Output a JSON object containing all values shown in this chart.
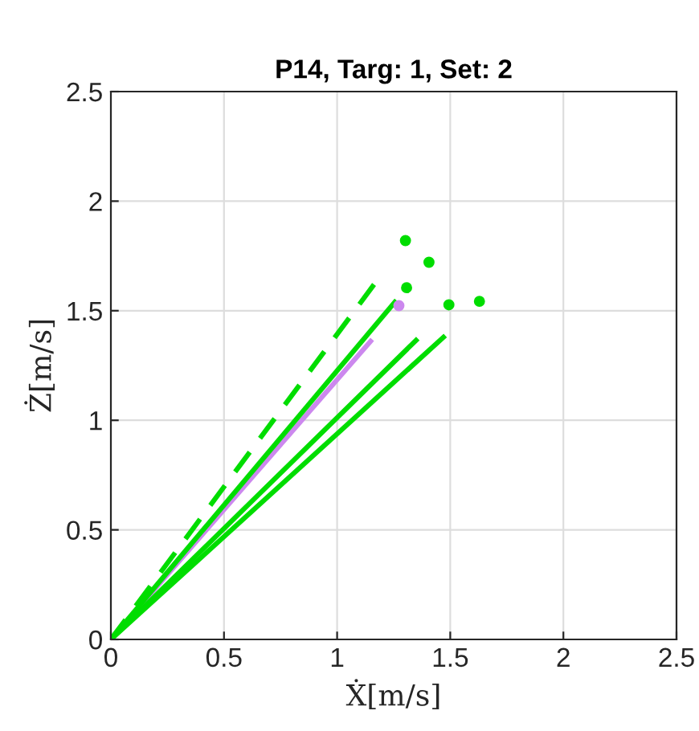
{
  "chart_data": {
    "type": "line",
    "title": "P14, Targ: 1, Set: 2",
    "xlabel": "Ẋ[m/s]",
    "ylabel": "Ż[m/s]",
    "xlim": [
      0,
      2.5
    ],
    "ylim": [
      0,
      2.5
    ],
    "xticks": [
      0,
      0.5,
      1,
      1.5,
      2,
      2.5
    ],
    "yticks": [
      0,
      0.5,
      1,
      1.5,
      2,
      2.5
    ],
    "grid": true,
    "series": [
      {
        "color": "#cc88ee",
        "x": [
          0,
          1.148
        ],
        "values": [
          0,
          1.361
        ],
        "line_style": "solid",
        "marker": "none"
      },
      {
        "type": "scatter",
        "color": "#cc88ee",
        "x": [
          1.273
        ],
        "values": [
          1.523
        ],
        "marker": "circle"
      },
      {
        "color": "#00dd00",
        "x": [
          0,
          1.167
        ],
        "values": [
          0,
          1.625
        ],
        "line_style": "dashed",
        "marker": "none"
      },
      {
        "color": "#00dd00",
        "x": [
          0,
          1.255
        ],
        "values": [
          0,
          1.539
        ],
        "line_style": "solid",
        "marker": "none"
      },
      {
        "color": "#00dd00",
        "x": [
          0,
          1.349
        ],
        "values": [
          0,
          1.365
        ],
        "line_style": "solid",
        "marker": "none"
      },
      {
        "color": "#00dd00",
        "x": [
          0,
          1.47
        ],
        "values": [
          0,
          1.379
        ],
        "line_style": "solid",
        "marker": "none"
      },
      {
        "type": "scatter",
        "color": "#00dd00",
        "x": [
          1.302,
          1.406,
          1.307,
          1.494,
          1.629
        ],
        "values": [
          1.82,
          1.721,
          1.605,
          1.527,
          1.543
        ],
        "marker": "circle"
      }
    ]
  }
}
